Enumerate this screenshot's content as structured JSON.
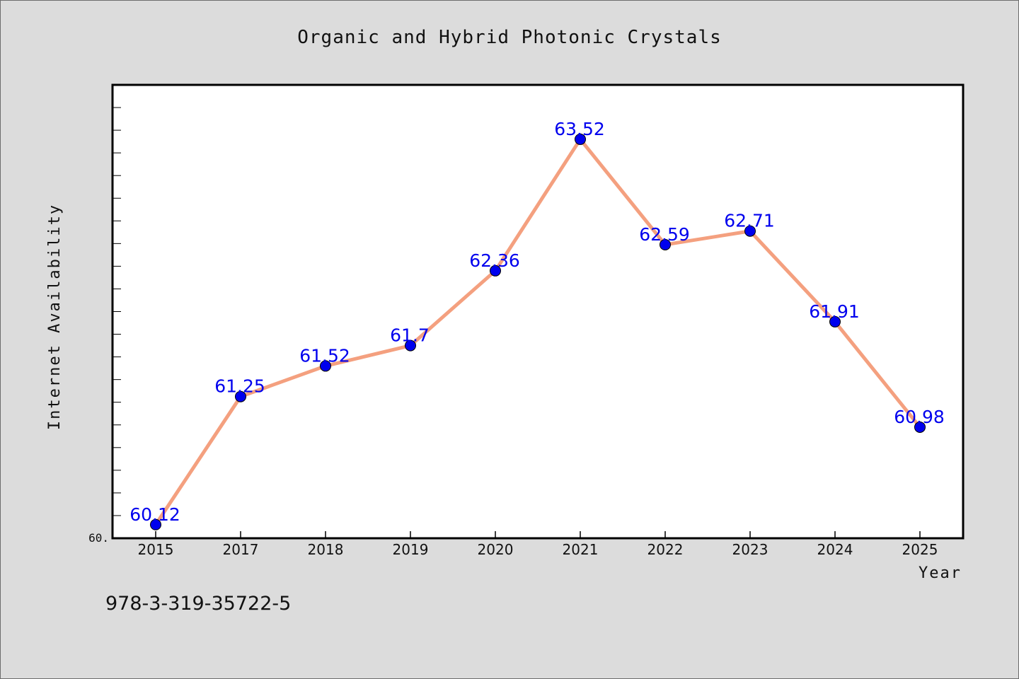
{
  "chart_data": {
    "type": "line",
    "title": "Organic and Hybrid Photonic Crystals",
    "xlabel": "Year",
    "ylabel": "Internet Availability",
    "categories": [
      "2015",
      "2017",
      "2018",
      "2019",
      "2020",
      "2021",
      "2022",
      "2023",
      "2024",
      "2025"
    ],
    "values": [
      60.12,
      61.25,
      61.52,
      61.7,
      62.36,
      63.52,
      62.59,
      62.71,
      61.91,
      60.98
    ],
    "data_labels": [
      "60.12",
      "61.25",
      "61.52",
      "61.7",
      "62.36",
      "63.52",
      "62.59",
      "62.71",
      "61.91",
      "60.98"
    ],
    "ylim": [
      60.0,
      64.0
    ],
    "y_tick_label": "60.",
    "grid": false,
    "line_color": "#f4a07f",
    "marker_color": "#0000ee"
  },
  "footer": {
    "isbn": "978-3-319-35722-5"
  }
}
